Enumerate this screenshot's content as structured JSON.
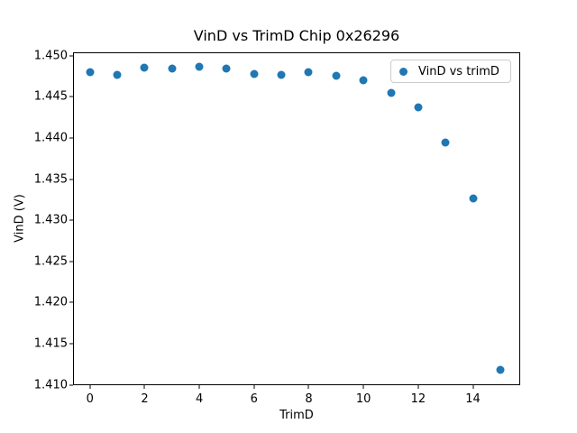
{
  "chart_data": {
    "type": "scatter",
    "title": "VinD vs TrimD Chip 0x26296",
    "xlabel": "TrimD",
    "ylabel": "VinD (V)",
    "legend_position": "upper right",
    "grid": false,
    "background_color": "#ffffff",
    "axis_color": "#000000",
    "legend_border_color": "#cccccc",
    "series": [
      {
        "name": "VinD vs trimD",
        "color": "#1f77b4",
        "x": [
          0,
          1,
          2,
          3,
          4,
          5,
          6,
          7,
          8,
          9,
          10,
          11,
          12,
          13,
          14,
          15
        ],
        "y": [
          1.448,
          1.4477,
          1.4485,
          1.4484,
          1.4487,
          1.4484,
          1.4478,
          1.4477,
          1.448,
          1.4476,
          1.447,
          1.4455,
          1.4437,
          1.4394,
          1.4326,
          1.4118
        ]
      }
    ],
    "xlim": [
      -0.62,
      15.73
    ],
    "ylim": [
      1.40995,
      1.45041
    ],
    "xticks": [
      0,
      2,
      4,
      6,
      8,
      10,
      12,
      14
    ],
    "xtick_labels": [
      "0",
      "2",
      "4",
      "6",
      "8",
      "10",
      "12",
      "14"
    ],
    "yticks": [
      1.41,
      1.415,
      1.42,
      1.425,
      1.43,
      1.435,
      1.44,
      1.445,
      1.45
    ],
    "ytick_labels": [
      "1.410",
      "1.415",
      "1.420",
      "1.425",
      "1.430",
      "1.435",
      "1.440",
      "1.445",
      "1.450"
    ]
  }
}
